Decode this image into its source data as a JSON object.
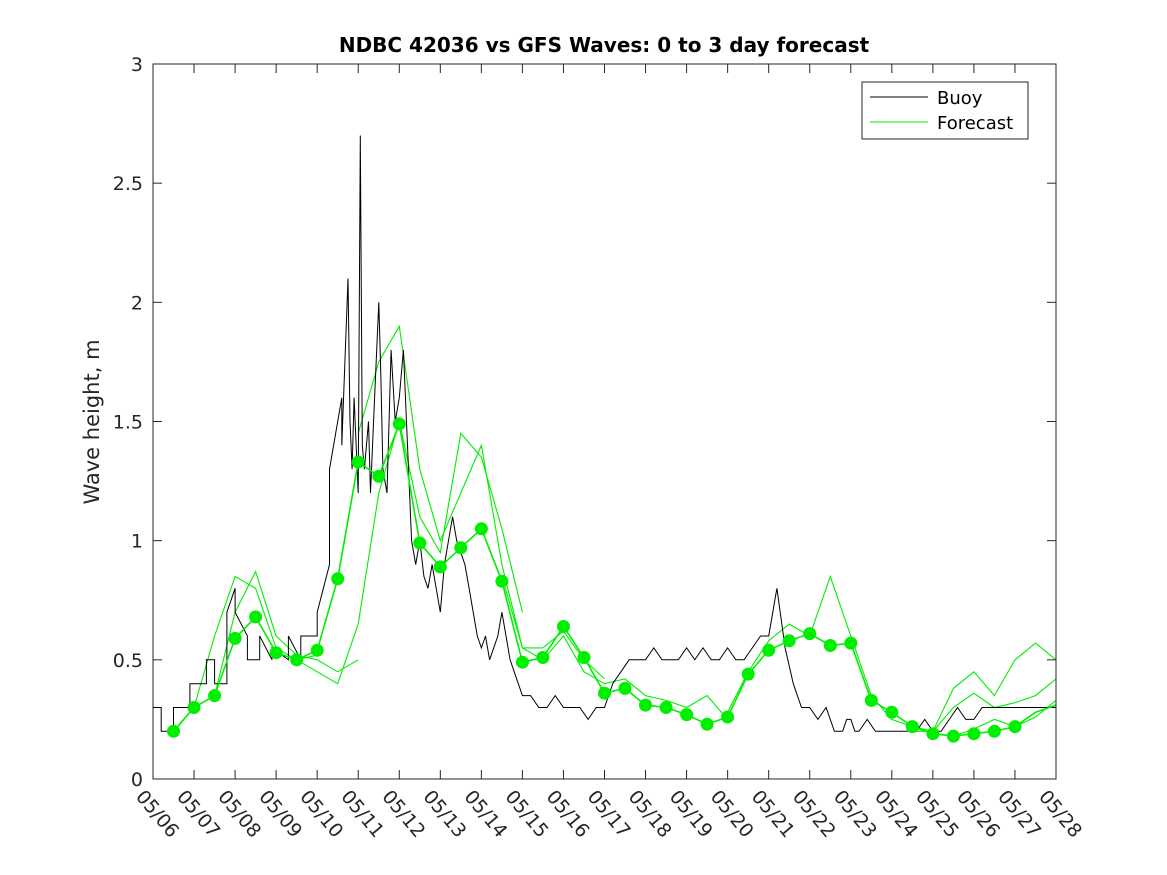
{
  "chart_data": {
    "type": "line",
    "title": "NDBC 42036 vs GFS Waves: 0 to 3 day forecast",
    "xlabel": "",
    "ylabel": "Wave height, m",
    "xlim": [
      0,
      22
    ],
    "ylim": [
      0,
      3
    ],
    "x_ticks": [
      "05/06",
      "05/07",
      "05/08",
      "05/09",
      "05/10",
      "05/11",
      "05/12",
      "05/13",
      "05/14",
      "05/15",
      "05/16",
      "05/17",
      "05/18",
      "05/19",
      "05/20",
      "05/21",
      "05/22",
      "05/23",
      "05/24",
      "05/25",
      "05/26",
      "05/27",
      "05/28"
    ],
    "y_ticks": [
      "0",
      "0.5",
      "1",
      "1.5",
      "2",
      "2.5",
      "3"
    ],
    "grid": false,
    "legend_position": "top-right",
    "colors": {
      "buoy": "#000000",
      "forecast": "#00ee00"
    },
    "series": [
      {
        "name": "Buoy",
        "x": [
          0.0,
          0.2,
          0.2,
          0.5,
          0.5,
          0.9,
          0.9,
          1.3,
          1.3,
          1.5,
          1.5,
          1.8,
          1.8,
          2.0,
          2.0,
          2.3,
          2.3,
          2.6,
          2.6,
          2.9,
          2.9,
          3.3,
          3.3,
          3.6,
          3.6,
          4.0,
          4.0,
          4.3,
          4.3,
          4.6,
          4.6,
          4.75,
          4.8,
          4.85,
          4.9,
          5.0,
          5.05,
          5.1,
          5.15,
          5.25,
          5.3,
          5.4,
          5.5,
          5.55,
          5.6,
          5.7,
          5.8,
          5.9,
          6.0,
          6.1,
          6.2,
          6.3,
          6.4,
          6.5,
          6.6,
          6.7,
          6.8,
          6.9,
          7.0,
          7.1,
          7.2,
          7.3,
          7.4,
          7.5,
          7.6,
          7.7,
          7.8,
          7.9,
          8.0,
          8.1,
          8.2,
          8.3,
          8.4,
          8.5,
          8.6,
          8.7,
          8.8,
          8.9,
          9.0,
          9.2,
          9.4,
          9.6,
          9.8,
          10.0,
          10.2,
          10.4,
          10.6,
          10.8,
          11.0,
          11.2,
          11.4,
          11.6,
          11.8,
          12.0,
          12.2,
          12.4,
          12.6,
          12.8,
          13.0,
          13.2,
          13.4,
          13.6,
          13.8,
          14.0,
          14.2,
          14.4,
          14.6,
          14.8,
          15.0,
          15.2,
          15.4,
          15.6,
          15.8,
          16.0,
          16.2,
          16.4,
          16.6,
          16.8,
          16.9,
          17.0,
          17.1,
          17.2,
          17.4,
          17.6,
          17.8,
          18.0,
          18.2,
          18.4,
          18.6,
          18.8,
          19.0,
          19.2,
          19.4,
          19.6,
          19.8,
          20.0,
          20.2,
          20.4,
          20.6,
          20.8,
          21.0,
          21.2,
          21.4,
          21.6,
          21.8,
          22.0
        ],
        "values": [
          0.3,
          0.3,
          0.2,
          0.2,
          0.3,
          0.3,
          0.4,
          0.4,
          0.5,
          0.5,
          0.4,
          0.4,
          0.7,
          0.8,
          0.7,
          0.6,
          0.5,
          0.5,
          0.6,
          0.5,
          0.55,
          0.5,
          0.6,
          0.5,
          0.6,
          0.6,
          0.7,
          0.9,
          1.3,
          1.6,
          1.4,
          2.1,
          1.5,
          1.3,
          1.6,
          1.2,
          2.7,
          1.4,
          1.3,
          1.5,
          1.2,
          1.6,
          2.0,
          1.7,
          1.3,
          1.2,
          1.8,
          1.5,
          1.6,
          1.8,
          1.4,
          1.0,
          0.9,
          1.0,
          0.85,
          0.8,
          0.9,
          0.8,
          0.7,
          0.9,
          1.0,
          1.1,
          1.0,
          0.95,
          0.9,
          0.8,
          0.7,
          0.6,
          0.55,
          0.6,
          0.5,
          0.55,
          0.6,
          0.7,
          0.6,
          0.5,
          0.45,
          0.4,
          0.35,
          0.35,
          0.3,
          0.3,
          0.35,
          0.3,
          0.3,
          0.3,
          0.25,
          0.3,
          0.3,
          0.4,
          0.45,
          0.5,
          0.5,
          0.5,
          0.55,
          0.5,
          0.5,
          0.5,
          0.55,
          0.5,
          0.55,
          0.5,
          0.5,
          0.55,
          0.5,
          0.5,
          0.55,
          0.6,
          0.6,
          0.8,
          0.55,
          0.4,
          0.3,
          0.3,
          0.25,
          0.3,
          0.2,
          0.2,
          0.25,
          0.25,
          0.2,
          0.2,
          0.25,
          0.2,
          0.2,
          0.2,
          0.2,
          0.2,
          0.2,
          0.25,
          0.2,
          0.2,
          0.25,
          0.3,
          0.25,
          0.25,
          0.3,
          0.3,
          0.3,
          0.3,
          0.3,
          0.3,
          0.3,
          0.3,
          0.3,
          0.3
        ]
      },
      {
        "name": "Forecast",
        "x": [
          0.5,
          1.0,
          1.5,
          2.0,
          2.5,
          3.0,
          3.5,
          4.0,
          4.5,
          5.0,
          5.5,
          6.0,
          6.5,
          7.0,
          7.5,
          8.0,
          8.5,
          9.0,
          9.5,
          10.0,
          10.5,
          11.0,
          11.5,
          12.0,
          12.5,
          13.0,
          13.5,
          14.0,
          14.5,
          15.0,
          15.5,
          16.0,
          16.5,
          17.0,
          17.5,
          18.0,
          18.5,
          19.0,
          19.5,
          20.0,
          20.5,
          21.0,
          21.5,
          22.0
        ],
        "values": [
          0.2,
          0.3,
          0.35,
          0.59,
          0.68,
          0.53,
          0.5,
          0.54,
          0.84,
          1.33,
          1.27,
          1.49,
          0.99,
          0.89,
          0.97,
          1.05,
          0.83,
          0.49,
          0.51,
          0.64,
          0.51,
          0.36,
          0.38,
          0.31,
          0.3,
          0.27,
          0.23,
          0.26,
          0.44,
          0.54,
          0.58,
          0.61,
          0.56,
          0.57,
          0.33,
          0.28,
          0.22,
          0.19,
          0.18,
          0.19,
          0.2,
          0.22,
          0.28,
          0.31
        ]
      }
    ],
    "forecast_markers": {
      "x": [
        0.5,
        1.0,
        1.5,
        2.0,
        2.5,
        3.0,
        3.5,
        4.0,
        4.5,
        5.0,
        5.5,
        6.0,
        6.5,
        7.0,
        7.5,
        8.0,
        8.5,
        9.0,
        9.5,
        10.0,
        10.5,
        11.0,
        11.5,
        12.0,
        12.5,
        13.0,
        13.5,
        14.0,
        14.5,
        15.0,
        15.5,
        16.0,
        16.5,
        17.0,
        17.5,
        18.0,
        18.5,
        19.0,
        19.5,
        20.0,
        20.5,
        21.0
      ],
      "values": [
        0.2,
        0.3,
        0.35,
        0.59,
        0.68,
        0.53,
        0.5,
        0.54,
        0.84,
        1.33,
        1.27,
        1.49,
        0.99,
        0.89,
        0.97,
        1.05,
        0.83,
        0.49,
        0.51,
        0.64,
        0.51,
        0.36,
        0.38,
        0.31,
        0.3,
        0.27,
        0.23,
        0.26,
        0.44,
        0.54,
        0.58,
        0.61,
        0.56,
        0.57,
        0.33,
        0.28,
        0.22,
        0.19,
        0.18,
        0.19,
        0.2,
        0.22
      ]
    },
    "forecast_runs": [
      {
        "x": [
          0.5,
          1.0,
          1.5,
          2.0,
          2.5,
          3.0,
          3.5,
          4.0
        ],
        "values": [
          0.2,
          0.3,
          0.6,
          0.85,
          0.8,
          0.55,
          0.5,
          0.52
        ]
      },
      {
        "x": [
          1.5,
          2.0,
          2.5,
          3.0,
          3.5,
          4.0,
          4.5,
          5.0
        ],
        "values": [
          0.35,
          0.7,
          0.87,
          0.6,
          0.52,
          0.5,
          0.45,
          0.5
        ]
      },
      {
        "x": [
          3.5,
          4.0,
          4.5,
          5.0,
          5.5,
          6.0,
          6.5,
          7.0,
          7.5,
          8.0,
          8.5,
          9.0
        ],
        "values": [
          0.5,
          0.45,
          0.4,
          0.65,
          1.2,
          1.5,
          1.1,
          0.95,
          1.45,
          1.35,
          1.05,
          0.7
        ]
      },
      {
        "x": [
          5.0,
          5.5,
          6.0,
          6.5,
          7.0,
          7.5,
          8.0,
          8.5,
          9.0,
          9.5,
          10.0,
          10.5,
          11.0
        ],
        "values": [
          1.45,
          1.75,
          1.9,
          1.3,
          1.0,
          1.2,
          1.4,
          0.9,
          0.55,
          0.55,
          0.62,
          0.5,
          0.42
        ]
      },
      {
        "x": [
          8.5,
          9.0,
          9.5,
          10.0,
          10.5,
          11.0,
          11.5,
          12.0,
          12.5,
          13.0,
          13.5,
          14.0
        ],
        "values": [
          0.85,
          0.55,
          0.5,
          0.6,
          0.45,
          0.4,
          0.42,
          0.35,
          0.33,
          0.3,
          0.35,
          0.25
        ]
      },
      {
        "x": [
          14.0,
          14.5,
          15.0,
          15.5,
          16.0,
          16.5,
          17.0,
          17.5,
          18.0,
          18.5,
          19.0,
          19.5,
          20.0,
          20.5,
          21.0,
          21.5,
          22.0
        ],
        "values": [
          0.28,
          0.45,
          0.58,
          0.65,
          0.6,
          0.85,
          0.6,
          0.35,
          0.25,
          0.22,
          0.2,
          0.38,
          0.45,
          0.35,
          0.5,
          0.57,
          0.5
        ]
      },
      {
        "x": [
          18.5,
          19.0,
          19.5,
          20.0,
          20.5,
          21.0,
          21.5,
          22.0
        ],
        "values": [
          0.2,
          0.2,
          0.3,
          0.36,
          0.3,
          0.32,
          0.35,
          0.42
        ]
      },
      {
        "x": [
          19.5,
          20.0,
          20.5,
          21.0,
          21.5,
          22.0
        ],
        "values": [
          0.18,
          0.21,
          0.25,
          0.22,
          0.26,
          0.33
        ]
      }
    ]
  },
  "legend": {
    "items": [
      {
        "label": "Buoy",
        "color": "#000000"
      },
      {
        "label": "Forecast",
        "color": "#00ee00"
      }
    ]
  }
}
